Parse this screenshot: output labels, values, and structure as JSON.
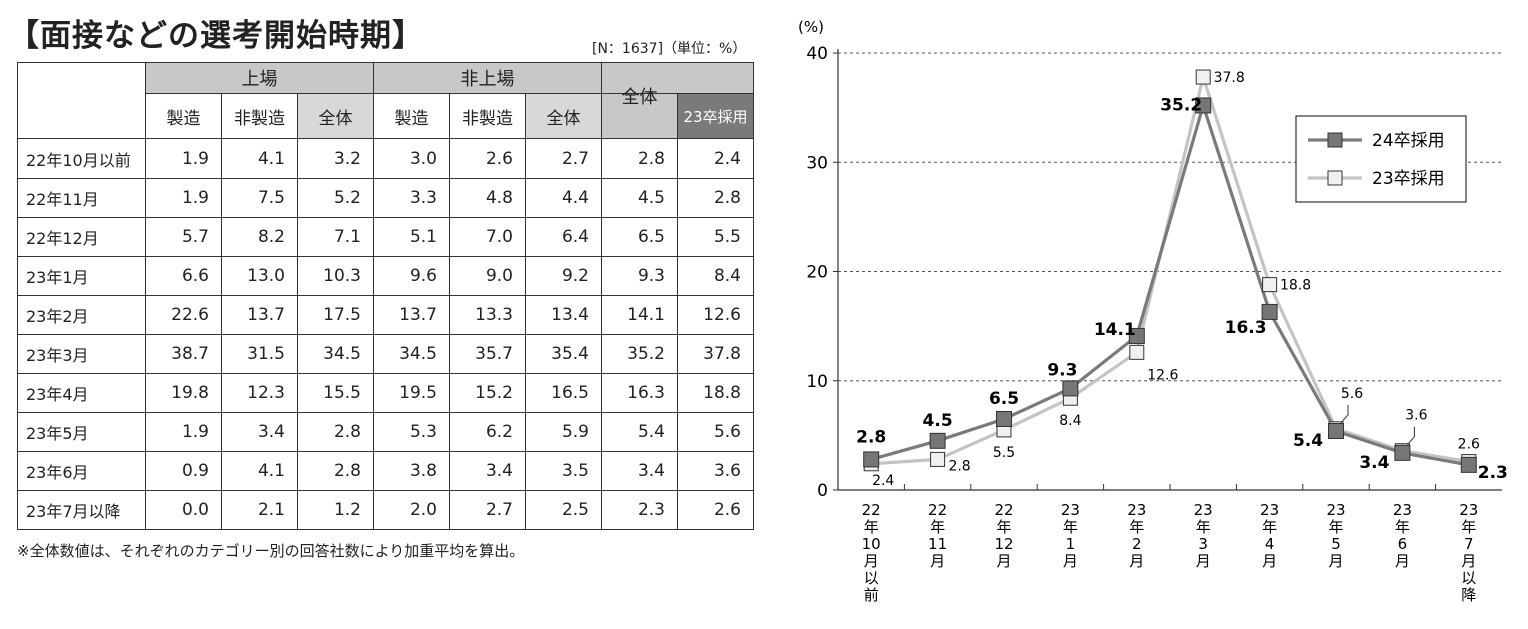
{
  "title": "【面接などの選考開始時期】",
  "meta": "[N：1637]（単位：%）",
  "note": "※全体数値は、それぞれのカテゴリー別の回答社数により加重平均を算出。",
  "table": {
    "group_listed": "上場",
    "group_unlisted": "非上場",
    "group_total": "全体",
    "sub": [
      "製造",
      "非製造",
      "全体",
      "製造",
      "非製造",
      "全体"
    ],
    "prev_year": "23卒採用",
    "rows": [
      {
        "label": "22年10月以前",
        "v": [
          "1.9",
          "4.1",
          "3.2",
          "3.0",
          "2.6",
          "2.7",
          "2.8",
          "2.4"
        ]
      },
      {
        "label": "22年11月",
        "v": [
          "1.9",
          "7.5",
          "5.2",
          "3.3",
          "4.8",
          "4.4",
          "4.5",
          "2.8"
        ]
      },
      {
        "label": "22年12月",
        "v": [
          "5.7",
          "8.2",
          "7.1",
          "5.1",
          "7.0",
          "6.4",
          "6.5",
          "5.5"
        ]
      },
      {
        "label": "23年1月",
        "v": [
          "6.6",
          "13.0",
          "10.3",
          "9.6",
          "9.0",
          "9.2",
          "9.3",
          "8.4"
        ]
      },
      {
        "label": "23年2月",
        "v": [
          "22.6",
          "13.7",
          "17.5",
          "13.7",
          "13.3",
          "13.4",
          "14.1",
          "12.6"
        ]
      },
      {
        "label": "23年3月",
        "v": [
          "38.7",
          "31.5",
          "34.5",
          "34.5",
          "35.7",
          "35.4",
          "35.2",
          "37.8"
        ]
      },
      {
        "label": "23年4月",
        "v": [
          "19.8",
          "12.3",
          "15.5",
          "19.5",
          "15.2",
          "16.5",
          "16.3",
          "18.8"
        ]
      },
      {
        "label": "23年5月",
        "v": [
          "1.9",
          "3.4",
          "2.8",
          "5.3",
          "6.2",
          "5.9",
          "5.4",
          "5.6"
        ]
      },
      {
        "label": "23年6月",
        "v": [
          "0.9",
          "4.1",
          "2.8",
          "3.8",
          "3.4",
          "3.5",
          "3.4",
          "3.6"
        ]
      },
      {
        "label": "23年7月以降",
        "v": [
          "0.0",
          "2.1",
          "1.2",
          "2.0",
          "2.7",
          "2.5",
          "2.3",
          "2.6"
        ]
      }
    ]
  },
  "chart_data": {
    "type": "line",
    "ylabel": "(%)",
    "ylim": [
      0,
      40
    ],
    "yticks": [
      0,
      10,
      20,
      30,
      40
    ],
    "grid": "dashed horizontal",
    "legend_position": "top-right",
    "categories": [
      [
        "22",
        "年",
        "10",
        "月",
        "以",
        "前"
      ],
      [
        "22",
        "年",
        "11",
        "月"
      ],
      [
        "22",
        "年",
        "12",
        "月"
      ],
      [
        "23",
        "年",
        "1",
        "月"
      ],
      [
        "23",
        "年",
        "2",
        "月"
      ],
      [
        "23",
        "年",
        "3",
        "月"
      ],
      [
        "23",
        "年",
        "4",
        "月"
      ],
      [
        "23",
        "年",
        "5",
        "月"
      ],
      [
        "23",
        "年",
        "6",
        "月"
      ],
      [
        "23",
        "年",
        "7",
        "月",
        "以",
        "降"
      ]
    ],
    "series": [
      {
        "name": "24卒採用",
        "values": [
          2.8,
          4.5,
          6.5,
          9.3,
          14.1,
          35.2,
          16.3,
          5.4,
          3.4,
          2.3
        ],
        "labels": [
          "2.8",
          "4.5",
          "6.5",
          "9.3",
          "14.1",
          "35.2",
          "16.3",
          "5.4",
          "3.4",
          "2.3"
        ],
        "line_color": "#7a7a7a",
        "marker_color": "#767676"
      },
      {
        "name": "23卒採用",
        "values": [
          2.4,
          2.8,
          5.5,
          8.4,
          12.6,
          37.8,
          18.8,
          5.6,
          3.6,
          2.6
        ],
        "labels": [
          "2.4",
          "2.8",
          "5.5",
          "8.4",
          "12.6",
          "37.8",
          "18.8",
          "5.6",
          "3.6",
          "2.6"
        ],
        "line_color": "#c4c4c4",
        "marker_color": "#f0f0f0"
      }
    ]
  }
}
